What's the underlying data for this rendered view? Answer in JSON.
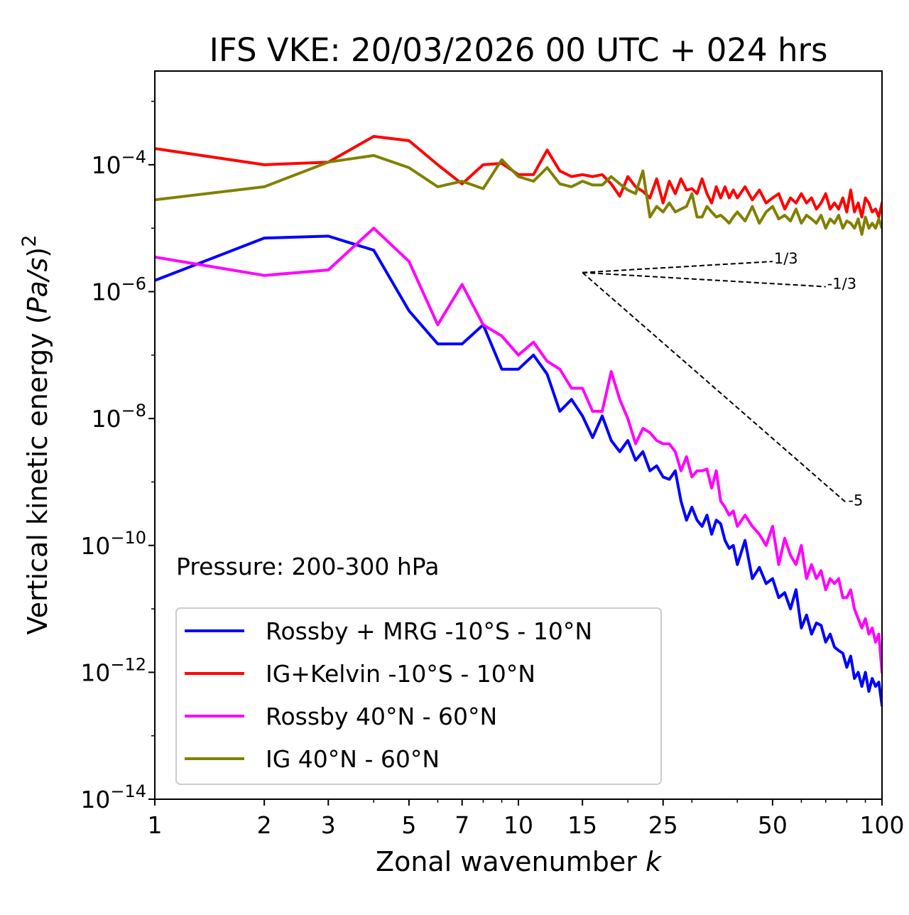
{
  "chart_data": {
    "type": "line",
    "title": "IFS VKE: 20/03/2026 00 UTC + 024 hrs",
    "xlabel_text": "Zonal wavenumber ",
    "xlabel_var": "k",
    "ylabel_text": "Vertical kinetic energy (",
    "ylabel_unit": "Pa/s",
    "ylabel_close": ")",
    "ylabel_exp": "2",
    "x_scale": "log",
    "y_scale": "log",
    "xlim": [
      1,
      100
    ],
    "ylim": [
      1e-14,
      0.003
    ],
    "x_ticks": [
      {
        "value": 1,
        "label": "1"
      },
      {
        "value": 2,
        "label": "2"
      },
      {
        "value": 3,
        "label": "3"
      },
      {
        "value": 5,
        "label": "5"
      },
      {
        "value": 7,
        "label": "7"
      },
      {
        "value": 10,
        "label": "10"
      },
      {
        "value": 15,
        "label": "15"
      },
      {
        "value": 25,
        "label": "25"
      },
      {
        "value": 50,
        "label": "50"
      },
      {
        "value": 100,
        "label": "100"
      }
    ],
    "y_ticks": [
      {
        "exp": -14,
        "base": "10",
        "sup": "−14"
      },
      {
        "exp": -12,
        "base": "10",
        "sup": "−12"
      },
      {
        "exp": -10,
        "base": "10",
        "sup": "−10"
      },
      {
        "exp": -8,
        "base": "10",
        "sup": "−8"
      },
      {
        "exp": -6,
        "base": "10",
        "sup": "−6"
      },
      {
        "exp": -4,
        "base": "10",
        "sup": "−4"
      }
    ],
    "annotation": "Pressure: 200-300 hPa",
    "reference_slopes": {
      "origin": [
        15,
        2e-06
      ],
      "lines": [
        {
          "label": "1/3",
          "slope": 0.3333,
          "x_end": 50
        },
        {
          "label": "-1/3",
          "slope": -0.3333,
          "x_end": 70
        },
        {
          "label": "-5",
          "slope": -5,
          "x_end": 80
        }
      ]
    },
    "legend_position": "lower-left",
    "series": [
      {
        "name": "Rossby + MRG -10°S - 10°N",
        "color": "#0000ff",
        "x": [
          1,
          2,
          3,
          4,
          5,
          6,
          7,
          8,
          9,
          10,
          11,
          12,
          13,
          14,
          15,
          16,
          17,
          18,
          19,
          20,
          21,
          22,
          23,
          24,
          25,
          26,
          27,
          28,
          29,
          30,
          31,
          32,
          33,
          34,
          35,
          36,
          37,
          38,
          39,
          40,
          42,
          44,
          46,
          48,
          50,
          52,
          54,
          56,
          58,
          60,
          62,
          64,
          66,
          68,
          70,
          72,
          74,
          76,
          78,
          80,
          82,
          84,
          86,
          88,
          90,
          92,
          94,
          96,
          98,
          100
        ],
        "y": [
          1.5e-06,
          7e-06,
          7.5e-06,
          4.5e-06,
          5e-07,
          1.5e-07,
          1.5e-07,
          3e-07,
          6e-08,
          6e-08,
          1e-07,
          5e-08,
          1.3e-08,
          2e-08,
          1.1e-08,
          5e-09,
          1.1e-08,
          4.5e-09,
          3e-09,
          4.5e-09,
          2.2e-09,
          3e-09,
          1.5e-09,
          1.8e-09,
          1.2e-09,
          1.1e-09,
          1.5e-09,
          5e-10,
          2.5e-10,
          4e-10,
          2.5e-10,
          2e-10,
          3e-10,
          1.5e-10,
          2.5e-10,
          2.2e-10,
          1.2e-10,
          9e-11,
          1e-10,
          5e-11,
          1.2e-10,
          3e-11,
          4.5e-11,
          2.5e-11,
          3e-11,
          1.5e-11,
          1.8e-11,
          1e-11,
          2e-11,
          5e-12,
          8e-12,
          4e-12,
          6e-12,
          5.5e-12,
          3e-12,
          4e-12,
          2.5e-12,
          2.2e-12,
          2e-12,
          1.2e-12,
          1.8e-12,
          8e-13,
          1e-12,
          6e-13,
          1e-12,
          5e-13,
          8e-13,
          6e-13,
          7e-13,
          3e-13
        ]
      },
      {
        "name": "IG+Kelvin -10°S - 10°N",
        "color": "#ff0000",
        "x": [
          1,
          2,
          3,
          4,
          5,
          6,
          7,
          8,
          9,
          10,
          11,
          12,
          13,
          14,
          15,
          16,
          17,
          18,
          19,
          20,
          21,
          22,
          23,
          24,
          25,
          26,
          27,
          28,
          29,
          30,
          31,
          32,
          33,
          34,
          35,
          36,
          37,
          38,
          39,
          40,
          42,
          44,
          46,
          48,
          50,
          52,
          54,
          56,
          58,
          60,
          62,
          64,
          66,
          68,
          70,
          72,
          74,
          76,
          78,
          80,
          82,
          84,
          86,
          88,
          90,
          92,
          94,
          96,
          98,
          100
        ],
        "y": [
          0.00018,
          0.0001,
          0.00011,
          0.00028,
          0.00024,
          0.0001,
          5e-05,
          0.0001,
          0.000105,
          7e-05,
          7e-05,
          0.00017,
          8e-05,
          6.5e-05,
          7e-05,
          6.5e-05,
          7e-05,
          5e-05,
          3.2e-05,
          6.5e-05,
          4.5e-05,
          3.8e-05,
          3e-05,
          6e-05,
          2.5e-05,
          5.5e-05,
          3.5e-05,
          6e-05,
          4e-05,
          4.2e-05,
          3.5e-05,
          6e-05,
          3.5e-05,
          2.5e-05,
          4.5e-05,
          3e-05,
          4.5e-05,
          3e-05,
          4e-05,
          3e-05,
          4.5e-05,
          2.8e-05,
          4e-05,
          2.5e-05,
          3e-05,
          3.5e-05,
          2e-05,
          3e-05,
          2.5e-05,
          3.5e-05,
          2.5e-05,
          3e-05,
          2e-05,
          2.5e-05,
          3.5e-05,
          2e-05,
          2.5e-05,
          2e-05,
          3e-05,
          1.8e-05,
          4e-05,
          1.8e-05,
          2.5e-05,
          1.5e-05,
          3e-05,
          2.5e-05,
          1.8e-05,
          2e-05,
          1.5e-05,
          2.5e-05
        ]
      },
      {
        "name": "Rossby 40°N - 60°N",
        "color": "#ff00ff",
        "x": [
          1,
          2,
          3,
          4,
          5,
          6,
          7,
          8,
          9,
          10,
          11,
          12,
          13,
          14,
          15,
          16,
          17,
          18,
          19,
          20,
          21,
          22,
          23,
          24,
          25,
          26,
          27,
          28,
          29,
          30,
          31,
          32,
          33,
          34,
          35,
          36,
          37,
          38,
          39,
          40,
          42,
          44,
          46,
          48,
          50,
          52,
          54,
          56,
          58,
          60,
          62,
          64,
          66,
          68,
          70,
          72,
          74,
          76,
          78,
          80,
          82,
          84,
          86,
          88,
          90,
          92,
          94,
          96,
          98,
          100
        ],
        "y": [
          3.5e-06,
          1.8e-06,
          2.2e-06,
          1e-05,
          3e-06,
          3e-07,
          1.3e-06,
          3e-07,
          2e-07,
          1e-07,
          1.6e-07,
          8e-08,
          6e-08,
          3e-08,
          3e-08,
          1.3e-08,
          1.3e-08,
          5.5e-08,
          2e-08,
          1e-08,
          4e-09,
          7e-09,
          6e-09,
          4.5e-09,
          4e-09,
          4e-09,
          3e-09,
          1.5e-09,
          2.5e-09,
          1.2e-09,
          1.5e-09,
          1.5e-09,
          1.6e-09,
          8e-10,
          1.5e-09,
          5e-10,
          4e-10,
          3e-10,
          3.5e-10,
          2e-10,
          3e-10,
          2e-10,
          1.5e-10,
          1e-10,
          2e-10,
          5e-11,
          1.3e-10,
          7e-11,
          5e-11,
          1e-10,
          3e-11,
          5e-11,
          3e-11,
          4e-11,
          2e-11,
          3e-11,
          2.5e-11,
          3e-11,
          1.5e-11,
          1.5e-11,
          2e-11,
          1e-11,
          7e-12,
          5e-12,
          7e-12,
          4e-12,
          5e-12,
          3e-12,
          4e-12,
          1e-12
        ]
      },
      {
        "name": "IG 40°N - 60°N",
        "color": "#808000",
        "x": [
          1,
          2,
          3,
          4,
          5,
          6,
          7,
          8,
          9,
          10,
          11,
          12,
          13,
          14,
          15,
          16,
          17,
          18,
          19,
          20,
          21,
          22,
          23,
          24,
          25,
          26,
          27,
          28,
          29,
          30,
          31,
          32,
          33,
          34,
          35,
          36,
          37,
          38,
          39,
          40,
          42,
          44,
          46,
          48,
          50,
          52,
          54,
          56,
          58,
          60,
          62,
          64,
          66,
          68,
          70,
          72,
          74,
          76,
          78,
          80,
          82,
          84,
          86,
          88,
          90,
          92,
          94,
          96,
          98,
          100
        ],
        "y": [
          2.8e-05,
          4.5e-05,
          0.00011,
          0.00014,
          9e-05,
          4.5e-05,
          5.5e-05,
          4.2e-05,
          0.00012,
          6.5e-05,
          5.5e-05,
          9e-05,
          5e-05,
          4.5e-05,
          5.5e-05,
          4.8e-05,
          4.8e-05,
          6.5e-05,
          5e-05,
          4e-05,
          3.5e-05,
          8e-05,
          1.5e-05,
          2.2e-05,
          1.8e-05,
          2.5e-05,
          1.8e-05,
          2e-05,
          2.2e-05,
          3.5e-05,
          1.5e-05,
          1.5e-05,
          2.2e-05,
          1.8e-05,
          1.5e-05,
          1.6e-05,
          1.4e-05,
          1.2e-05,
          1.5e-05,
          1.8e-05,
          1.3e-05,
          2.2e-05,
          1.2e-05,
          1.8e-05,
          2.2e-05,
          1.4e-05,
          1.6e-05,
          1.3e-05,
          2e-05,
          1.2e-05,
          1.6e-05,
          1.4e-05,
          1.2e-05,
          1.6e-05,
          1e-05,
          1.4e-05,
          1.2e-05,
          1.6e-05,
          1e-05,
          1.3e-05,
          1.2e-05,
          1e-05,
          1.4e-05,
          8e-06,
          1.5e-05,
          1e-05,
          1.2e-05,
          1e-05,
          1.4e-05,
          1e-05
        ]
      }
    ]
  }
}
